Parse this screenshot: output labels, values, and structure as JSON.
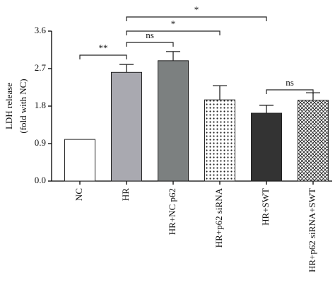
{
  "chart_data": {
    "type": "bar",
    "ylabel": [
      "LDH release",
      "(fold with NC)"
    ],
    "categories": [
      "NC",
      "HR",
      "HR+NC p62",
      "HR+p62 siRNA",
      "HR+SWT",
      "HR+p62 siRNA+SWT"
    ],
    "values": [
      1.0,
      2.61,
      2.89,
      1.95,
      1.63,
      1.94
    ],
    "errors": [
      null,
      0.19,
      0.22,
      0.34,
      0.19,
      0.18
    ],
    "colors": [
      "#ffffff",
      "#a9a9b0",
      "#7c8080",
      "#ffffff",
      "#333333",
      "#ffffff"
    ],
    "patterns": [
      "solid",
      "solid",
      "solid",
      "dots",
      "solid",
      "crosshatch"
    ],
    "ylim": [
      0,
      3.6
    ],
    "yticks": [
      {
        "value": 0,
        "label": "0.0"
      },
      0.9,
      1.8,
      2.7,
      3.6
    ],
    "significance": [
      {
        "from": 0,
        "to": 1,
        "label": "**"
      },
      {
        "from": 1,
        "to": 2,
        "label": "ns"
      },
      {
        "from": 1,
        "to": 3,
        "label": "*"
      },
      {
        "from": 1,
        "to": 4,
        "label": "*"
      },
      {
        "from": 4,
        "to": 5,
        "label": "ns"
      }
    ]
  }
}
